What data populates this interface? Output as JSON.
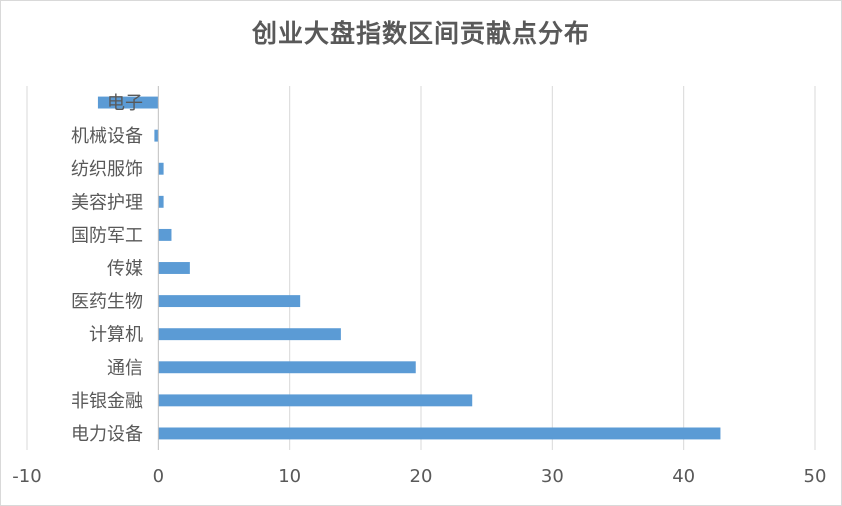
{
  "chart_data": {
    "type": "bar",
    "orientation": "horizontal",
    "title": "创业大盘指数区间贡献点分布",
    "xlabel": "",
    "ylabel": "",
    "xlim": [
      -10,
      50
    ],
    "xticks": [
      -10,
      0,
      10,
      20,
      30,
      40,
      50
    ],
    "grid": "vertical",
    "legend": "none",
    "bar_color": "#5b9bd5",
    "categories": [
      "电子",
      "机械设备",
      "纺织服饰",
      "美容护理",
      "国防军工",
      "传媒",
      "医药生物",
      "计算机",
      "通信",
      "非银金融",
      "电力设备"
    ],
    "values": [
      -4.6,
      -0.3,
      0.4,
      0.4,
      1.0,
      2.4,
      10.8,
      13.9,
      19.6,
      23.9,
      42.8
    ]
  }
}
